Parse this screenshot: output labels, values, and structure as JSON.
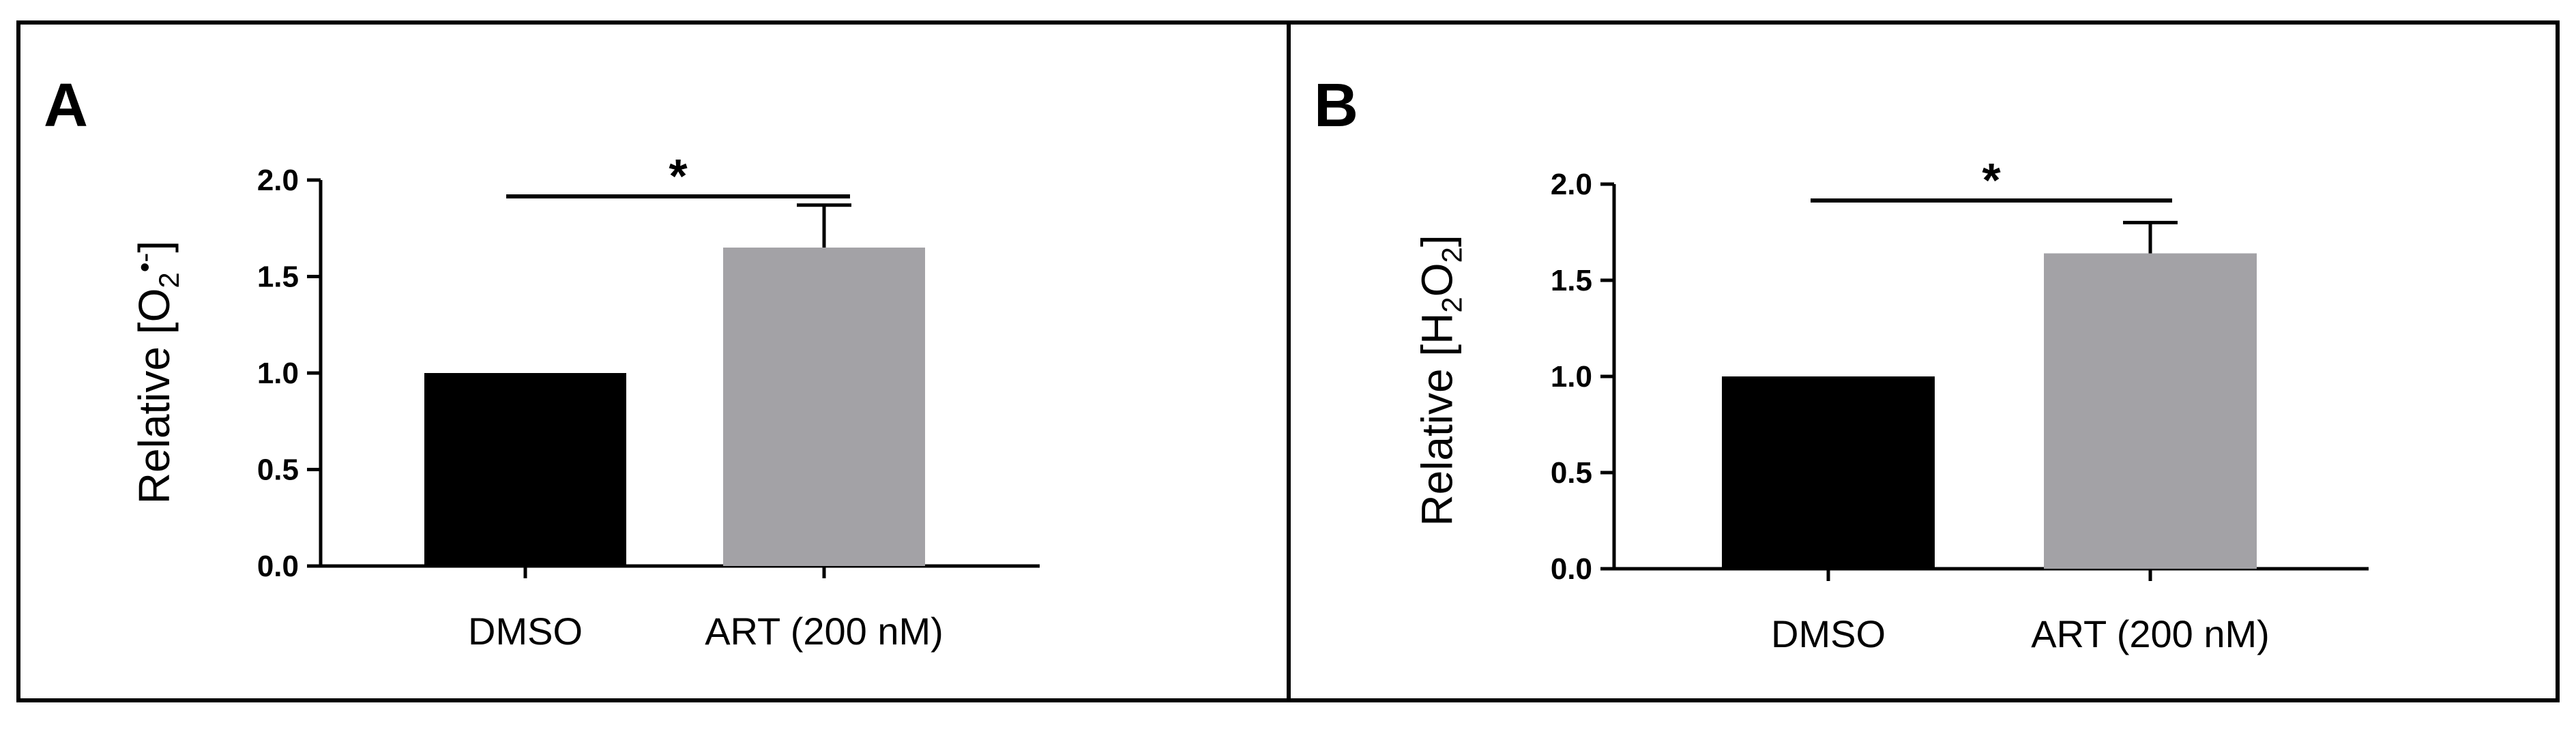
{
  "panels": {
    "A": {
      "letter": "A",
      "ylabel_prefix": "Relative [O",
      "ylabel_sub": "2",
      "ylabel_sup": "•-",
      "ylabel_suffix": "]"
    },
    "B": {
      "letter": "B",
      "ylabel_prefix": "Relative [H",
      "ylabel_sub": "2",
      "ylabel_mid": "O",
      "ylabel_sub2": "2",
      "ylabel_suffix": "]"
    }
  },
  "chart_data": [
    {
      "type": "bar",
      "categories": [
        "DMSO",
        "ART (200 nM)"
      ],
      "values": [
        1.0,
        1.65
      ],
      "errors": [
        0,
        0.22
      ],
      "colors": [
        "#000000",
        "#a3a2a6"
      ],
      "ylim": [
        0,
        2.0
      ],
      "yticks": [
        "0.0",
        "0.5",
        "1.0",
        "1.5",
        "2.0"
      ],
      "ytick_values": [
        0,
        0.5,
        1.0,
        1.5,
        2.0
      ],
      "significance": "*",
      "grid": false
    },
    {
      "type": "bar",
      "categories": [
        "DMSO",
        "ART (200 nM)"
      ],
      "values": [
        1.0,
        1.64
      ],
      "errors": [
        0,
        0.16
      ],
      "colors": [
        "#000000",
        "#a3a2a6"
      ],
      "ylim": [
        0,
        2.0
      ],
      "yticks": [
        "0.0",
        "0.5",
        "1.0",
        "1.5",
        "2.0"
      ],
      "ytick_values": [
        0,
        0.5,
        1.0,
        1.5,
        2.0
      ],
      "significance": "*",
      "grid": false
    }
  ]
}
